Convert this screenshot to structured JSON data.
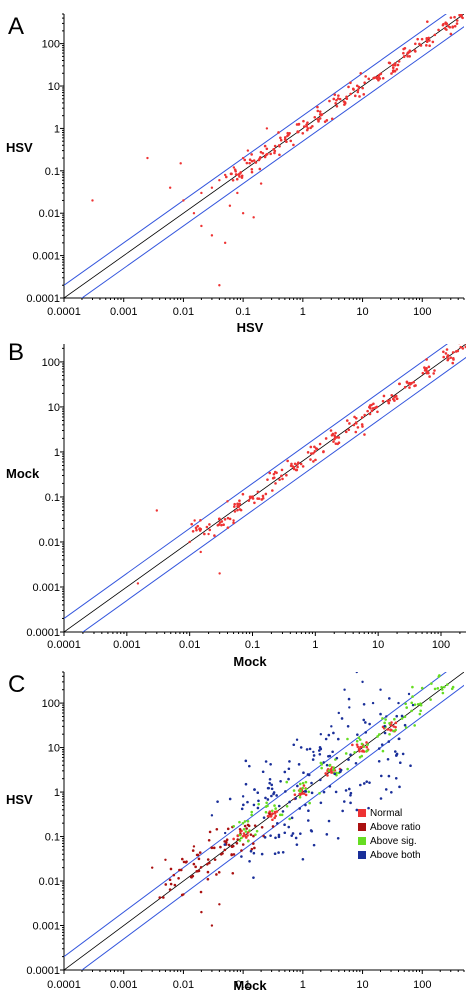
{
  "colors": {
    "normal": "#ee3333",
    "above_ratio": "#aa1111",
    "above_sig": "#66dd22",
    "above_both": "#1a2f99",
    "fold_line": "#3355dd",
    "diag_line": "#000000"
  },
  "chart_data": [
    {
      "type": "scatter",
      "panel": "A",
      "xlabel": "HSV",
      "ylabel": "HSV",
      "scale": "log",
      "xlim": [
        0.0001,
        500
      ],
      "ylim": [
        0.0001,
        500
      ],
      "xticks": [
        "0.0001",
        "0.001",
        "0.01",
        "0.1",
        "1",
        "10",
        "100"
      ],
      "yticks": [
        "0.0001",
        "0.001",
        "0.01",
        "0.1",
        "1",
        "10",
        "100"
      ],
      "fold_lines": [
        0.5,
        2
      ],
      "series": [
        {
          "color_key": "normal",
          "band_sigma": 0.09,
          "points_main": [
            [
              0.08,
              0.08
            ],
            [
              0.15,
              0.16
            ],
            [
              0.3,
              0.28
            ],
            [
              0.6,
              0.62
            ],
            [
              1,
              1.05
            ],
            [
              2,
              1.9
            ],
            [
              4,
              4.2
            ],
            [
              8,
              7.6
            ],
            [
              15,
              16
            ],
            [
              30,
              28
            ],
            [
              60,
              63
            ],
            [
              120,
              118
            ],
            [
              250,
              260
            ],
            [
              400,
              390
            ]
          ],
          "points_scatter": [
            [
              0.0003,
              0.02
            ],
            [
              0.0025,
              0.2
            ],
            [
              0.01,
              0.02
            ],
            [
              0.015,
              0.01
            ],
            [
              0.02,
              0.005
            ],
            [
              0.03,
              0.003
            ],
            [
              0.04,
              0.0002
            ],
            [
              0.05,
              0.002
            ],
            [
              0.06,
              0.015
            ],
            [
              0.02,
              0.03
            ],
            [
              0.05,
              0.08
            ],
            [
              0.08,
              0.03
            ],
            [
              0.1,
              0.01
            ],
            [
              0.12,
              0.3
            ],
            [
              0.2,
              0.05
            ],
            [
              0.1,
              0.2
            ],
            [
              0.15,
              0.008
            ],
            [
              0.07,
              0.12
            ],
            [
              0.03,
              0.04
            ],
            [
              0.25,
              1
            ],
            [
              0.4,
              0.4
            ],
            [
              0.006,
              0.04
            ],
            [
              0.009,
              0.15
            ],
            [
              0.04,
              0.06
            ]
          ]
        }
      ]
    },
    {
      "type": "scatter",
      "panel": "B",
      "xlabel": "Mock",
      "ylabel": "Mock",
      "scale": "log",
      "xlim": [
        0.0001,
        250
      ],
      "ylim": [
        0.0001,
        250
      ],
      "xticks": [
        "0.0001",
        "0.001",
        "0.01",
        "0.1",
        "1",
        "10",
        "100"
      ],
      "yticks": [
        "0.0001",
        "0.001",
        "0.01",
        "0.1",
        "1",
        "10",
        "100"
      ],
      "fold_lines": [
        0.5,
        2
      ],
      "series": [
        {
          "color_key": "normal",
          "band_sigma": 0.08,
          "points_main": [
            [
              0.015,
              0.02
            ],
            [
              0.03,
              0.028
            ],
            [
              0.06,
              0.06
            ],
            [
              0.12,
              0.11
            ],
            [
              0.25,
              0.26
            ],
            [
              0.5,
              0.5
            ],
            [
              1,
              1
            ],
            [
              2,
              2.1
            ],
            [
              4,
              3.9
            ],
            [
              8,
              8.2
            ],
            [
              16,
              15
            ],
            [
              32,
              33
            ],
            [
              64,
              62
            ],
            [
              130,
              128
            ],
            [
              220,
              230
            ]
          ],
          "points_scatter": [
            [
              0.0015,
              0.0012
            ],
            [
              0.003,
              0.05
            ],
            [
              0.01,
              0.01
            ],
            [
              0.015,
              0.006
            ],
            [
              0.03,
              0.002
            ],
            [
              0.02,
              0.015
            ],
            [
              0.04,
              0.08
            ],
            [
              0.012,
              0.03
            ],
            [
              0.05,
              0.03
            ]
          ]
        }
      ]
    },
    {
      "type": "scatter",
      "panel": "C",
      "xlabel": "Mock",
      "ylabel": "HSV",
      "scale": "log",
      "xlim": [
        0.0001,
        500
      ],
      "ylim": [
        0.0001,
        500
      ],
      "xticks": [
        "0.0001",
        "0.001",
        "0.01",
        "0.1",
        "1",
        "10",
        "100"
      ],
      "yticks": [
        "0.0001",
        "0.001",
        "0.01",
        "0.1",
        "1",
        "10",
        "100"
      ],
      "fold_lines": [
        0.5,
        2
      ],
      "legend": {
        "position": "right",
        "entries": [
          {
            "label": "Normal",
            "color_key": "normal"
          },
          {
            "label": "Above ratio",
            "color_key": "above_ratio"
          },
          {
            "label": "Above sig.",
            "color_key": "above_sig"
          },
          {
            "label": "Above both",
            "color_key": "above_both"
          }
        ]
      },
      "series": [
        {
          "name": "Normal",
          "color_key": "normal",
          "band_sigma": 0.06,
          "points_main": [
            [
              0.1,
              0.1
            ],
            [
              0.3,
              0.3
            ],
            [
              1,
              1
            ],
            [
              3,
              3
            ],
            [
              10,
              10
            ],
            [
              30,
              30
            ]
          ]
        },
        {
          "name": "Above ratio",
          "color_key": "above_ratio",
          "band_sigma": 0.18,
          "points_main": [
            [
              0.008,
              0.01
            ],
            [
              0.015,
              0.02
            ],
            [
              0.025,
              0.03
            ],
            [
              0.04,
              0.05
            ],
            [
              0.07,
              0.08
            ],
            [
              0.12,
              0.14
            ]
          ],
          "points_scatter": [
            [
              0.005,
              0.03
            ],
            [
              0.01,
              0.005
            ],
            [
              0.02,
              0.002
            ],
            [
              0.03,
              0.001
            ],
            [
              0.015,
              0.06
            ],
            [
              0.003,
              0.02
            ],
            [
              0.04,
              0.003
            ]
          ]
        },
        {
          "name": "Above sig.",
          "color_key": "above_sig",
          "band_sigma": 0.16,
          "points_main": [
            [
              0.1,
              0.12
            ],
            [
              0.3,
              0.35
            ],
            [
              1,
              1.1
            ],
            [
              3,
              3.3
            ],
            [
              10,
              10.5
            ],
            [
              30,
              32
            ],
            [
              80,
              90
            ],
            [
              200,
              210
            ]
          ]
        },
        {
          "name": "Above both",
          "color_key": "above_both",
          "band_sigma": 0.28,
          "points_main": [
            [
              0.15,
              0.9
            ],
            [
              0.3,
              1.5
            ],
            [
              0.6,
              2.5
            ],
            [
              1,
              5
            ],
            [
              3,
              10
            ],
            [
              10,
              40
            ],
            [
              0.5,
              0.1
            ],
            [
              1.5,
              0.3
            ],
            [
              5,
              1
            ],
            [
              12,
              2
            ],
            [
              0.2,
              0.05
            ],
            [
              30,
              8
            ]
          ],
          "points_scatter": [
            [
              0.1,
              0.8
            ],
            [
              0.05,
              0.12
            ],
            [
              0.03,
              0.3
            ],
            [
              2,
              20
            ],
            [
              3,
              30
            ],
            [
              5,
              200
            ],
            [
              8,
              500
            ],
            [
              10,
              300
            ],
            [
              20,
              200
            ],
            [
              15,
              100
            ],
            [
              25,
              50
            ],
            [
              40,
              100
            ],
            [
              60,
              160
            ],
            [
              70,
              90
            ],
            [
              4,
              60
            ],
            [
              6,
              80
            ],
            [
              0.8,
              15
            ],
            [
              1.5,
              8
            ]
          ]
        }
      ]
    }
  ]
}
